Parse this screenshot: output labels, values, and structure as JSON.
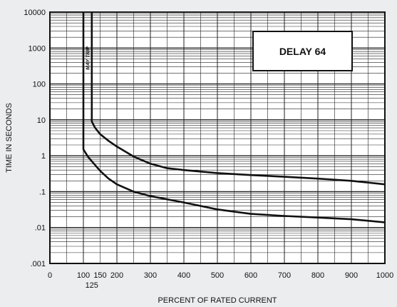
{
  "chart_data": {
    "type": "line",
    "title": "",
    "xlabel": "PERCENT OF RATED CURRENT",
    "ylabel": "TIME IN SECONDS",
    "xlim": [
      0,
      1000
    ],
    "ylim": [
      0.001,
      10000
    ],
    "yscale": "log",
    "grid": true,
    "x_ticks": [
      {
        "value": 0,
        "label": "0"
      },
      {
        "value": 100,
        "label": "100"
      },
      {
        "value": 150,
        "label": "150"
      },
      {
        "value": 200,
        "label": "200"
      },
      {
        "value": 300,
        "label": "300"
      },
      {
        "value": 400,
        "label": "400"
      },
      {
        "value": 500,
        "label": "500"
      },
      {
        "value": 600,
        "label": "600"
      },
      {
        "value": 700,
        "label": "700"
      },
      {
        "value": 800,
        "label": "800"
      },
      {
        "value": 900,
        "label": "900"
      },
      {
        "value": 1000,
        "label": "1000"
      }
    ],
    "x_extra_tick": {
      "value": 125,
      "label": "125"
    },
    "y_ticks": [
      {
        "value": 0.001,
        "label": ".001"
      },
      {
        "value": 0.01,
        "label": ".01"
      },
      {
        "value": 0.1,
        "label": ".1"
      },
      {
        "value": 1,
        "label": "1"
      },
      {
        "value": 10,
        "label": "10"
      },
      {
        "value": 100,
        "label": "100"
      },
      {
        "value": 1000,
        "label": "1000"
      },
      {
        "value": 10000,
        "label": "10000"
      }
    ],
    "series": [
      {
        "x": [
          125,
          125,
          135,
          150,
          175,
          200,
          250,
          300,
          350,
          400,
          500,
          600,
          700,
          800,
          900,
          1000
        ],
        "y": [
          10000,
          9,
          6,
          4,
          2.6,
          1.8,
          0.95,
          0.6,
          0.45,
          0.4,
          0.33,
          0.29,
          0.26,
          0.23,
          0.2,
          0.16
        ]
      },
      {
        "x": [
          100,
          100,
          115,
          135,
          150,
          175,
          200,
          250,
          300,
          400,
          500,
          600,
          700,
          800,
          900,
          1000
        ],
        "y": [
          10000,
          1.5,
          0.9,
          0.55,
          0.38,
          0.23,
          0.16,
          0.1,
          0.075,
          0.05,
          0.032,
          0.024,
          0.021,
          0.019,
          0.017,
          0.014
        ]
      }
    ],
    "annotations": [
      "MAY TRIP"
    ],
    "label_box": "DELAY 64",
    "colors": {
      "background": "#ecedef",
      "plot": "#ffffff",
      "curve": "#111111",
      "grid": "#222222"
    }
  }
}
